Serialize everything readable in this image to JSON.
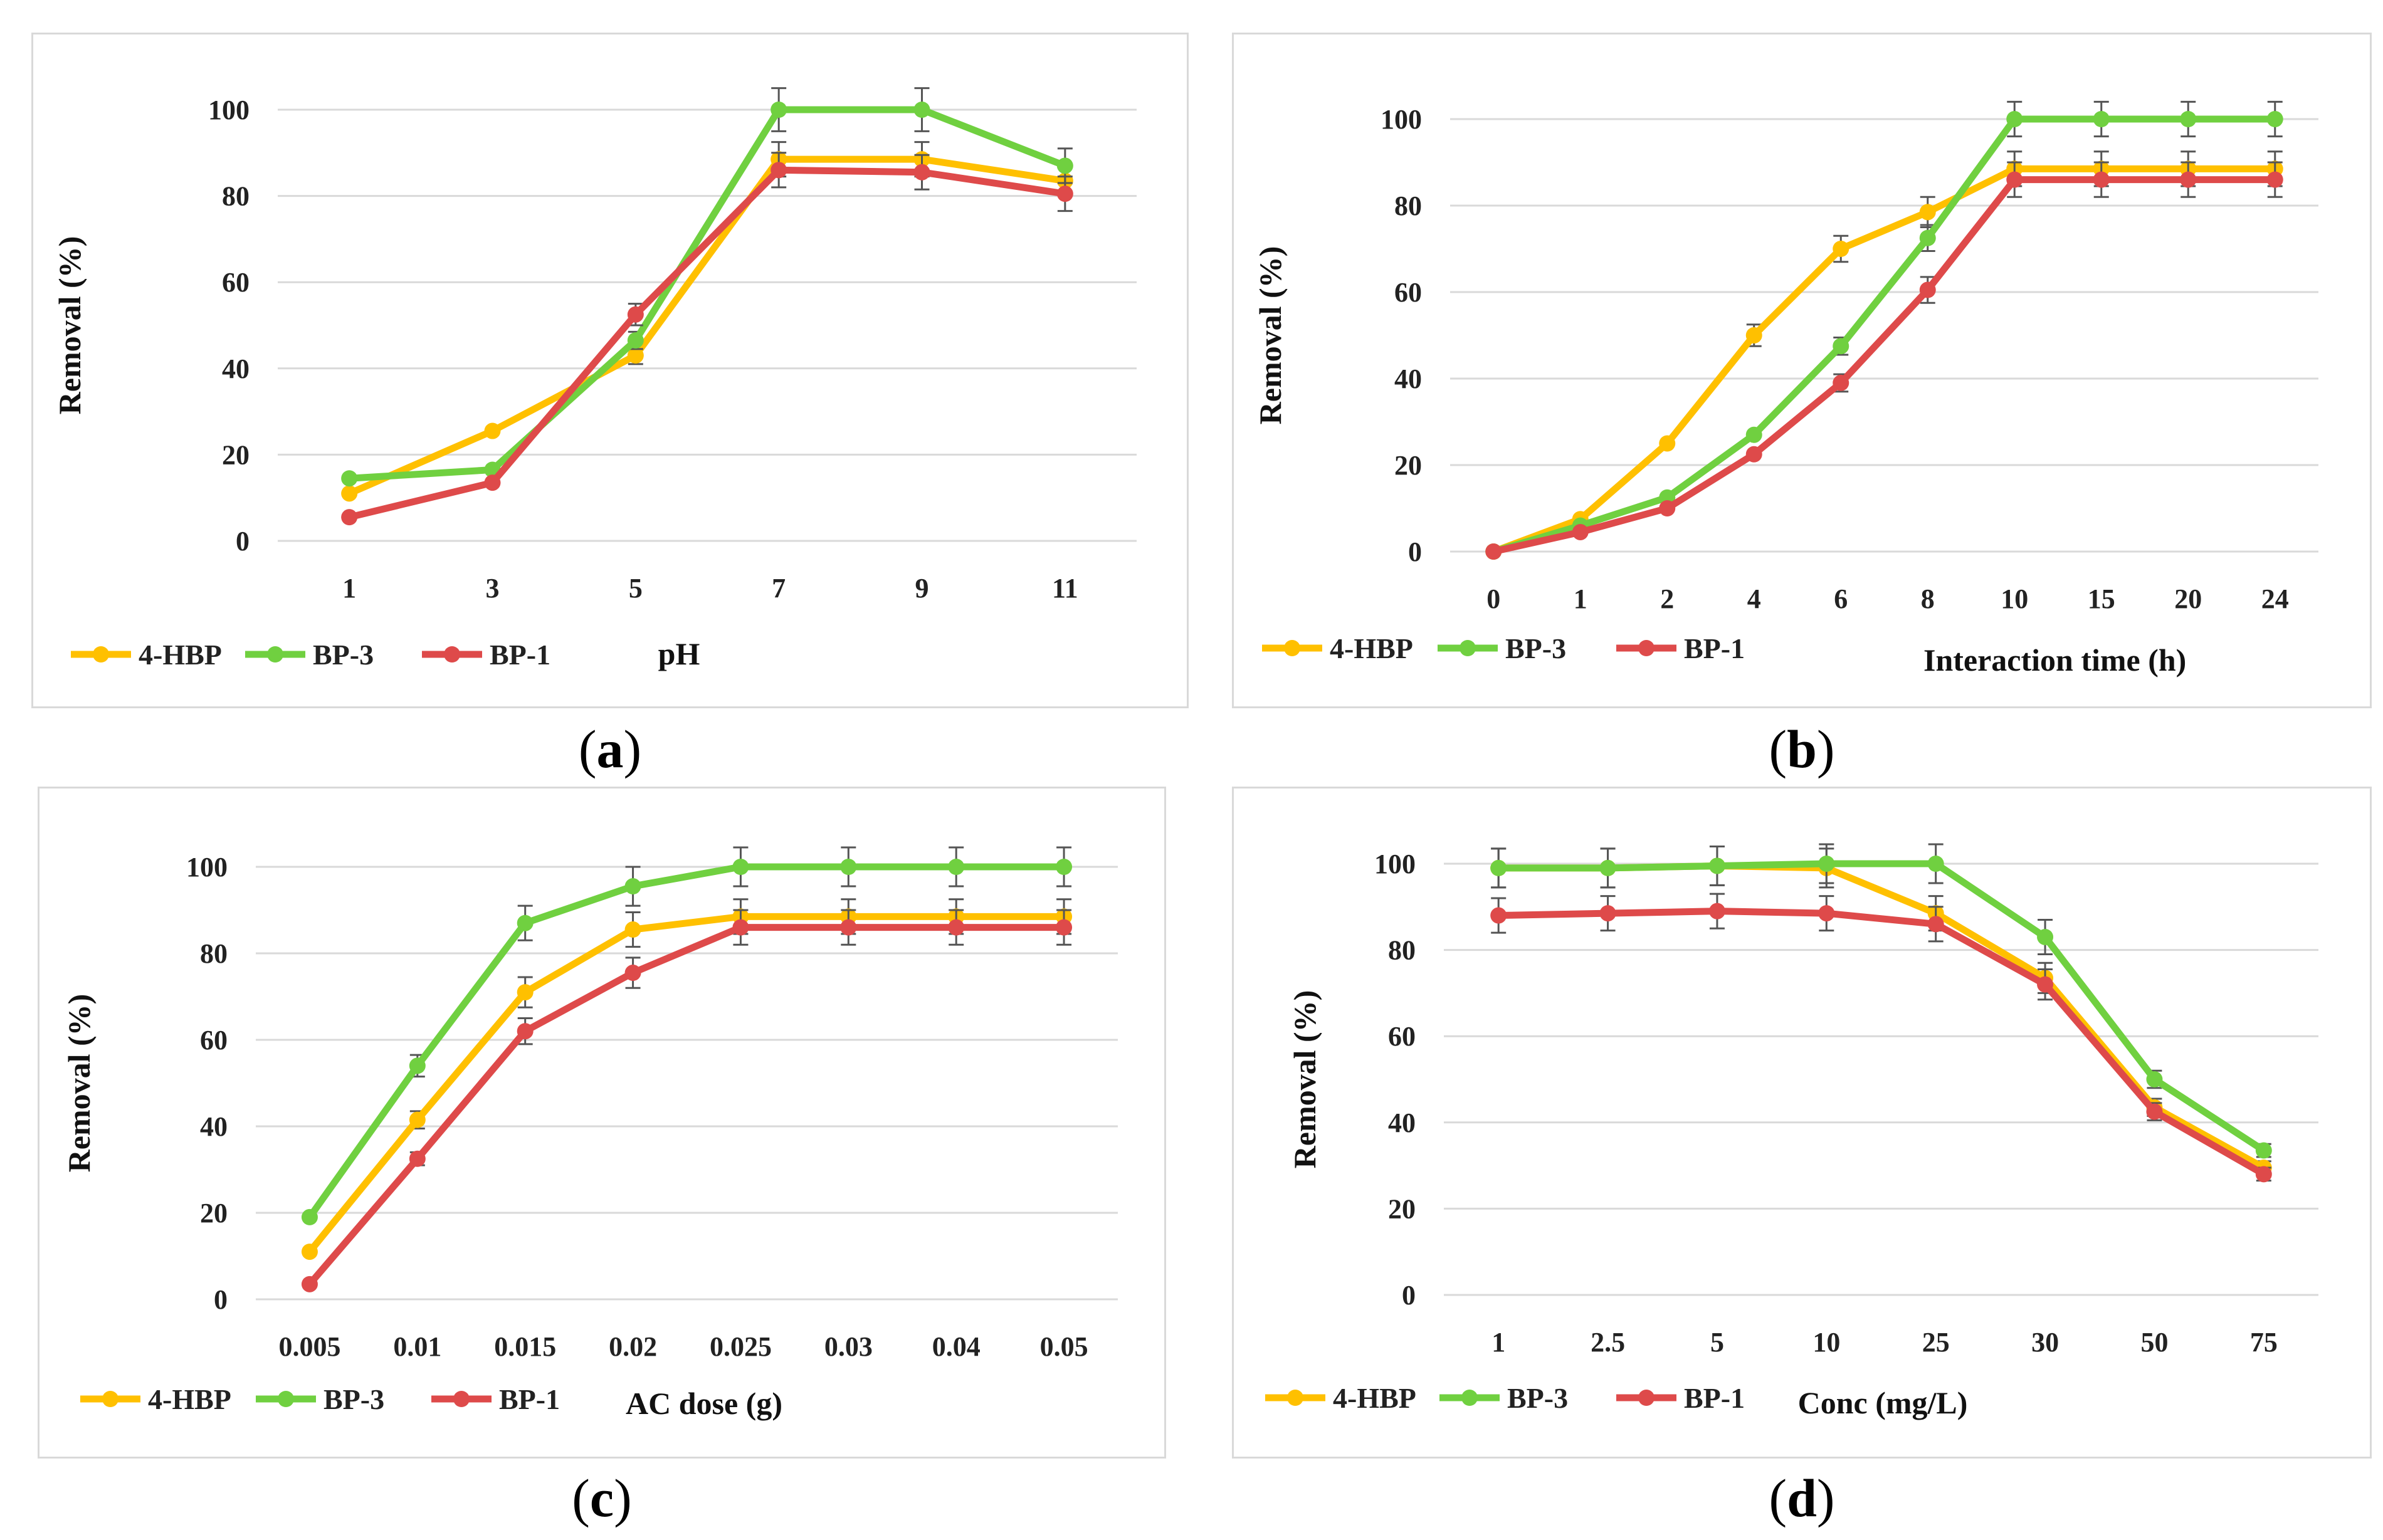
{
  "panels": [
    {
      "id": "a",
      "caption": "a"
    },
    {
      "id": "b",
      "caption": "b"
    },
    {
      "id": "c",
      "caption": "c"
    },
    {
      "id": "d",
      "caption": "d"
    }
  ],
  "colors": {
    "hbp4": "#FFC000",
    "bp3": "#70D040",
    "bp1": "#DE4A4A",
    "grid": "#d9d9d9",
    "errbar": "#555555"
  },
  "chart_data": [
    {
      "type": "line",
      "panel": "a",
      "categories": [
        "1",
        "3",
        "5",
        "7",
        "9",
        "11"
      ],
      "xlabel": "pH",
      "ylabel": "Removal (%)",
      "ylim": [
        0,
        100
      ],
      "yticks": [
        0,
        20,
        40,
        60,
        80,
        100
      ],
      "legend": "bottom",
      "series": [
        {
          "name": "4-HBP",
          "color": "#FFC000",
          "values": [
            11,
            25.5,
            43,
            88.5,
            88.5,
            83.5
          ],
          "err": [
            0,
            0,
            2,
            4,
            4,
            0
          ]
        },
        {
          "name": "BP-3",
          "color": "#70D040",
          "values": [
            14.5,
            16.5,
            46.5,
            100,
            100,
            87
          ],
          "err": [
            0,
            0,
            2,
            5,
            5,
            4
          ]
        },
        {
          "name": "BP-1",
          "color": "#DE4A4A",
          "values": [
            5.5,
            13.5,
            52.5,
            86,
            85.5,
            80.5
          ],
          "err": [
            0,
            0,
            2.5,
            4,
            4,
            4
          ]
        }
      ]
    },
    {
      "type": "line",
      "panel": "b",
      "categories": [
        "0",
        "1",
        "2",
        "4",
        "6",
        "8",
        "10",
        "15",
        "20",
        "24"
      ],
      "xlabel": "Interaction time (h)",
      "ylabel": "Removal (%)",
      "ylim": [
        0,
        100
      ],
      "yticks": [
        0,
        20,
        40,
        60,
        80,
        100
      ],
      "legend": "bottom",
      "series": [
        {
          "name": "4-HBP",
          "color": "#FFC000",
          "values": [
            0,
            7.5,
            25,
            50,
            70,
            78.5,
            88.5,
            88.5,
            88.5,
            88.5
          ],
          "err": [
            0,
            0,
            0,
            2.5,
            3,
            3.5,
            4,
            4,
            4,
            4
          ]
        },
        {
          "name": "BP-3",
          "color": "#70D040",
          "values": [
            0,
            6,
            12.5,
            27,
            47.5,
            72.5,
            100,
            100,
            100,
            100
          ],
          "err": [
            0,
            0,
            0,
            0,
            2,
            3,
            4,
            4,
            4,
            4
          ]
        },
        {
          "name": "BP-1",
          "color": "#DE4A4A",
          "values": [
            0,
            4.5,
            10,
            22.5,
            39,
            60.5,
            86,
            86,
            86,
            86
          ],
          "err": [
            0,
            0,
            0,
            0,
            2,
            3,
            4,
            4,
            4,
            4
          ]
        }
      ]
    },
    {
      "type": "line",
      "panel": "c",
      "categories": [
        "0.005",
        "0.01",
        "0.015",
        "0.02",
        "0.025",
        "0.03",
        "0.04",
        "0.05"
      ],
      "xlabel": "AC dose (g)",
      "ylabel": "Removal (%)",
      "ylim": [
        0,
        100
      ],
      "yticks": [
        0,
        20,
        40,
        60,
        80,
        100
      ],
      "legend": "bottom",
      "series": [
        {
          "name": "4-HBP",
          "color": "#FFC000",
          "values": [
            11,
            41.5,
            71,
            85.5,
            88.5,
            88.5,
            88.5,
            88.5
          ],
          "err": [
            0,
            2,
            3.5,
            4,
            4,
            4,
            4,
            4
          ]
        },
        {
          "name": "BP-3",
          "color": "#70D040",
          "values": [
            19,
            54,
            87,
            95.5,
            100,
            100,
            100,
            100
          ],
          "err": [
            0,
            2.5,
            4,
            4.5,
            4.5,
            4.5,
            4.5,
            4.5
          ]
        },
        {
          "name": "BP-1",
          "color": "#DE4A4A",
          "values": [
            3.5,
            32.5,
            62,
            75.5,
            86,
            86,
            86,
            86
          ],
          "err": [
            0,
            1.5,
            3,
            3.5,
            4,
            4,
            4,
            4
          ]
        }
      ]
    },
    {
      "type": "line",
      "panel": "d",
      "categories": [
        "1",
        "2.5",
        "5",
        "10",
        "25",
        "30",
        "50",
        "75"
      ],
      "xlabel": "Conc (mg/L)",
      "ylabel": "Removal (%)",
      "ylim": [
        0,
        100
      ],
      "yticks": [
        0,
        20,
        40,
        60,
        80,
        100
      ],
      "legend": "bottom",
      "series": [
        {
          "name": "4-HBP",
          "color": "#FFC000",
          "values": [
            99,
            99,
            99.5,
            99,
            88.5,
            73.5,
            43.5,
            29.5
          ],
          "err": [
            4.5,
            4.5,
            4.5,
            4.5,
            4,
            3.5,
            2,
            1.5
          ]
        },
        {
          "name": "BP-3",
          "color": "#70D040",
          "values": [
            99,
            99,
            99.5,
            100,
            100,
            83,
            50,
            33.5
          ],
          "err": [
            4.5,
            4.5,
            4.5,
            4.5,
            4.5,
            4,
            2,
            1.5
          ]
        },
        {
          "name": "BP-1",
          "color": "#DE4A4A",
          "values": [
            88,
            88.5,
            89,
            88.5,
            86,
            72,
            42.5,
            28
          ],
          "err": [
            4,
            4,
            4,
            4,
            4,
            3.5,
            2,
            1.5
          ]
        }
      ]
    }
  ]
}
